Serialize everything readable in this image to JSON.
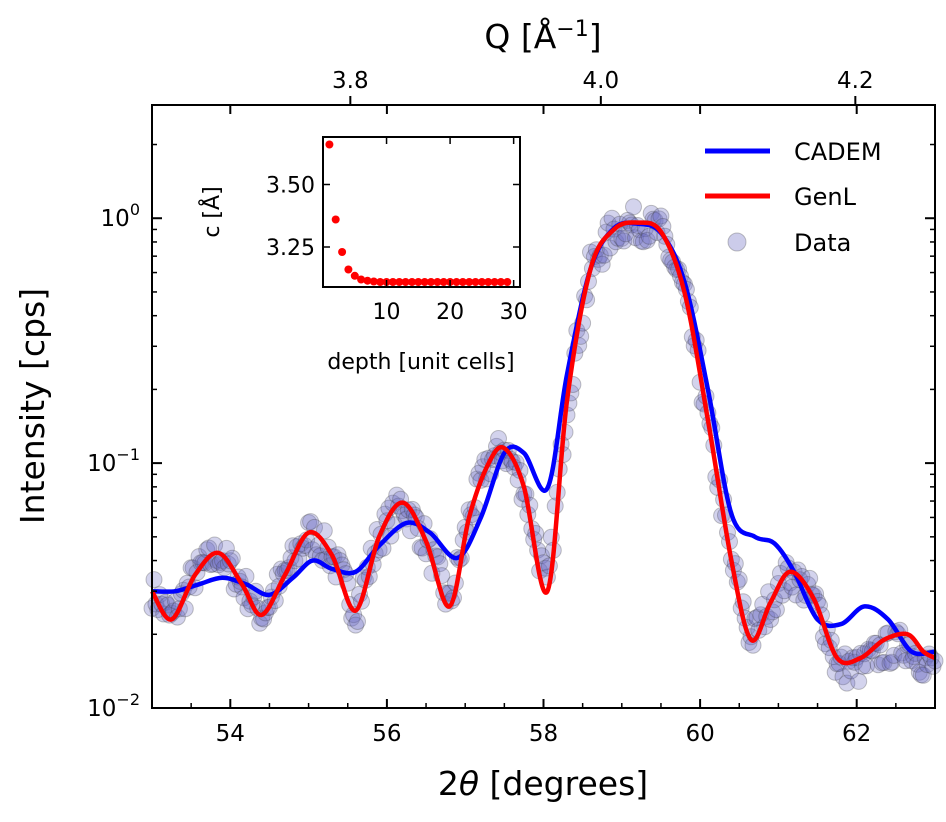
{
  "chart_data": {
    "type": "line",
    "x_label_prefix": "2",
    "x_label_symbol": "θ",
    "x_label_suffix": " [degrees]",
    "y_label": "Intensity [cps]",
    "top_label_prefix": "Q [Å",
    "top_label_exp": "−1",
    "top_label_suffix": "]",
    "xlim": [
      53.0,
      63.0
    ],
    "ylim": [
      0.01,
      2.9
    ],
    "yscale": "log",
    "x_ticks": [
      54,
      56,
      58,
      60,
      62
    ],
    "x_tick_labels": [
      "54",
      "56",
      "58",
      "60",
      "62"
    ],
    "top_ticks": [
      3.8,
      4.0,
      4.2
    ],
    "top_tick_labels": [
      "3.8",
      "4.0",
      "4.2"
    ],
    "y_ticks": [
      {
        "value": 0.01,
        "base": "10",
        "exp": "−2"
      },
      {
        "value": 0.1,
        "base": "10",
        "exp": "−1"
      },
      {
        "value": 1.0,
        "base": "10",
        "exp": "0"
      }
    ],
    "legend_position": "top-right",
    "series": [
      {
        "name": "CADEM",
        "color": "#0000ff",
        "x": [
          53.0,
          53.3,
          53.6,
          53.9,
          54.2,
          54.5,
          54.8,
          55.05,
          55.3,
          55.6,
          55.9,
          56.25,
          56.55,
          56.9,
          57.2,
          57.5,
          57.75,
          58.05,
          58.3,
          58.6,
          58.9,
          59.2,
          59.5,
          59.8,
          60.1,
          60.4,
          60.7,
          60.95,
          61.2,
          61.5,
          61.8,
          62.1,
          62.4,
          62.7,
          63.0
        ],
        "y": [
          0.03,
          0.03,
          0.032,
          0.034,
          0.032,
          0.029,
          0.034,
          0.04,
          0.037,
          0.036,
          0.046,
          0.057,
          0.052,
          0.041,
          0.06,
          0.11,
          0.11,
          0.079,
          0.23,
          0.62,
          0.91,
          0.95,
          0.87,
          0.55,
          0.2,
          0.062,
          0.05,
          0.047,
          0.036,
          0.023,
          0.022,
          0.026,
          0.023,
          0.017,
          0.017
        ]
      },
      {
        "name": "GenL",
        "color": "#ff0000",
        "x": [
          53.0,
          53.25,
          53.55,
          53.85,
          54.15,
          54.4,
          54.7,
          55.0,
          55.3,
          55.6,
          55.9,
          56.2,
          56.5,
          56.8,
          57.05,
          57.3,
          57.5,
          57.75,
          58.05,
          58.3,
          58.6,
          58.9,
          59.2,
          59.5,
          59.8,
          60.1,
          60.4,
          60.65,
          60.9,
          61.15,
          61.45,
          61.75,
          62.05,
          62.35,
          62.65,
          62.85,
          63.0
        ],
        "y": [
          0.03,
          0.023,
          0.035,
          0.043,
          0.032,
          0.024,
          0.035,
          0.052,
          0.042,
          0.025,
          0.05,
          0.069,
          0.048,
          0.026,
          0.06,
          0.1,
          0.115,
          0.08,
          0.03,
          0.18,
          0.62,
          0.9,
          0.96,
          0.88,
          0.5,
          0.15,
          0.04,
          0.019,
          0.027,
          0.036,
          0.028,
          0.016,
          0.016,
          0.019,
          0.02,
          0.017,
          0.016
        ]
      },
      {
        "name": "Data",
        "color": "#6e6ec2",
        "style": "scatter"
      }
    ],
    "inset": {
      "type": "scatter",
      "xlabel": "depth [unit cells]",
      "ylabel": "c [Å]",
      "xlim": [
        0.0,
        31.0
      ],
      "ylim": [
        3.09,
        3.69
      ],
      "x_ticks": [
        10,
        20,
        30
      ],
      "x_tick_labels": [
        "10",
        "20",
        "30"
      ],
      "y_ticks": [
        3.25,
        3.5
      ],
      "y_tick_labels": [
        "3.25",
        "3.50"
      ],
      "color": "#ff0000",
      "x": [
        1,
        2,
        3,
        4,
        5,
        6,
        7,
        8,
        9,
        10,
        11,
        12,
        13,
        14,
        15,
        16,
        17,
        18,
        19,
        20,
        21,
        22,
        23,
        24,
        25,
        26,
        27,
        28,
        29
      ],
      "y": [
        3.66,
        3.36,
        3.23,
        3.16,
        3.135,
        3.12,
        3.115,
        3.112,
        3.11,
        3.11,
        3.11,
        3.11,
        3.11,
        3.11,
        3.11,
        3.11,
        3.11,
        3.11,
        3.11,
        3.11,
        3.11,
        3.11,
        3.11,
        3.11,
        3.11,
        3.11,
        3.11,
        3.11,
        3.11
      ]
    }
  }
}
